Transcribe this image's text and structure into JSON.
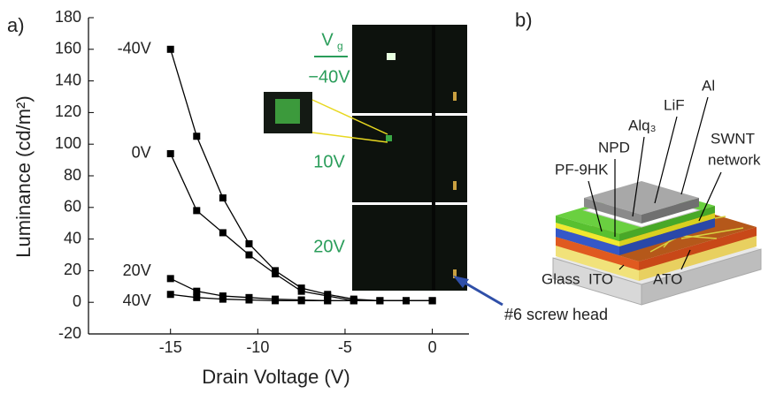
{
  "panel_labels": [
    "a)",
    "b)"
  ],
  "chart_data": {
    "type": "line",
    "x_label": "Drain Voltage (V)",
    "y_label": "Luminance (cd/m²)",
    "x": [
      -15,
      -13.5,
      -12,
      -10.5,
      -9,
      -7.5,
      -6,
      -4.5,
      -3,
      -1.5,
      0
    ],
    "series": [
      {
        "name": "-40V",
        "color": "#000000",
        "values": [
          160,
          105,
          66,
          37,
          20,
          9,
          5,
          2,
          1,
          1,
          1
        ]
      },
      {
        "name": "0V",
        "color": "#000000",
        "values": [
          94,
          58,
          44,
          30,
          18,
          7,
          4,
          1,
          1,
          1,
          1
        ]
      },
      {
        "name": "20V",
        "color": "#000000",
        "values": [
          15,
          7,
          4,
          3,
          2,
          1.5,
          1,
          1,
          1,
          1,
          1
        ]
      },
      {
        "name": "40V",
        "color": "#000000",
        "values": [
          5,
          3,
          2,
          1.5,
          1,
          1,
          1,
          1,
          1,
          1,
          1
        ]
      }
    ],
    "marker": "square",
    "xlim": [
      -19.7,
      2.1
    ],
    "ylim": [
      -20,
      180
    ],
    "xticks": [
      -15,
      -10,
      -5,
      0
    ],
    "yticks": [
      -20,
      0,
      20,
      40,
      60,
      80,
      100,
      120,
      140,
      160,
      180
    ],
    "inset": {
      "vg_symbol": "V",
      "vg_subscript": "g",
      "photo_labels": [
        "−40V",
        "10V",
        "20V"
      ],
      "color": "#2a9d5a"
    },
    "annotation": "#6 screw head"
  },
  "diagram": {
    "labels": {
      "al": "Al",
      "lif": "LiF",
      "alq3": "Alq₃",
      "npd": "NPD",
      "pf": "PF-9HK",
      "swnt": [
        "SWNT",
        "network"
      ],
      "glass": "Glass",
      "ito": "ITO",
      "ato": "ATO"
    }
  }
}
